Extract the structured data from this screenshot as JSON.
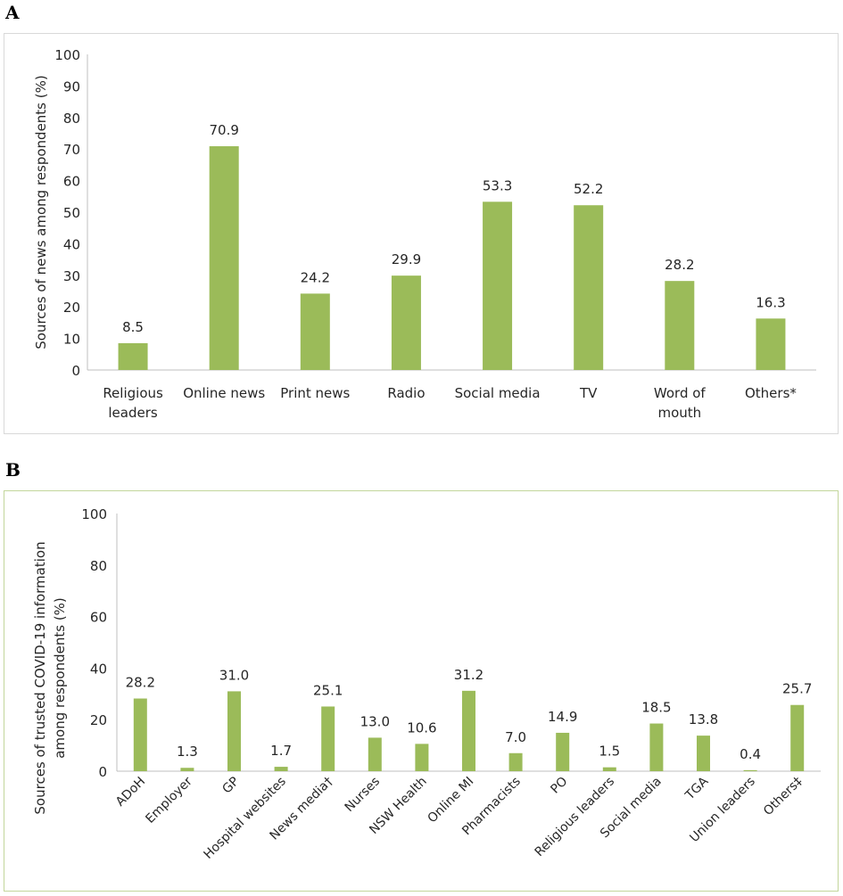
{
  "panels": [
    {
      "letter": "A",
      "chart_data": {
        "type": "bar",
        "title": "",
        "xlabel": "",
        "ylabel": "Sources of news among respondents (%)",
        "ylim": [
          0,
          100
        ],
        "yticks": [
          0,
          10,
          20,
          30,
          40,
          50,
          60,
          70,
          80,
          90,
          100
        ],
        "categories": [
          "Religious leaders",
          "Online news",
          "Print news",
          "Radio",
          "Social media",
          "TV",
          "Word of mouth",
          "Others*"
        ],
        "category_lines": [
          [
            "Religious",
            "leaders"
          ],
          [
            "Online news"
          ],
          [
            "Print news"
          ],
          [
            "Radio"
          ],
          [
            "Social media"
          ],
          [
            "TV"
          ],
          [
            "Word of",
            "mouth"
          ],
          [
            "Others*"
          ]
        ],
        "values": [
          8.5,
          70.9,
          24.2,
          29.9,
          53.3,
          52.2,
          28.2,
          16.3
        ],
        "labels": [
          "8.5",
          "70.9",
          "24.2",
          "29.9",
          "53.3",
          "52.2",
          "28.2",
          "16.3"
        ],
        "color": "#9bbb59"
      }
    },
    {
      "letter": "B",
      "chart_data": {
        "type": "bar",
        "title": "",
        "xlabel": "",
        "ylabel_lines": [
          "Sources of trusted COVID-19 information",
          "among respondents (%)"
        ],
        "ylim": [
          0,
          100
        ],
        "yticks": [
          0,
          20,
          40,
          60,
          80,
          100
        ],
        "categories": [
          "ADoH",
          "Employer",
          "GP",
          "Hospital websites",
          "News media†",
          "Nurses",
          "NSW Health",
          "Online MI",
          "Pharmacists",
          "PO",
          "Religious leaders",
          "Social media",
          "TGA",
          "Union leaders",
          "Others‡"
        ],
        "values": [
          28.2,
          1.3,
          31.0,
          1.7,
          25.1,
          13.0,
          10.6,
          31.2,
          7.0,
          14.9,
          1.5,
          18.5,
          13.8,
          0.4,
          25.7
        ],
        "labels": [
          "28.2",
          "1.3",
          "31.0",
          "1.7",
          "25.1",
          "13.0",
          "10.6",
          "31.2",
          "7.0",
          "14.9",
          "1.5",
          "18.5",
          "13.8",
          "0.4",
          "25.7"
        ],
        "color": "#9bbb59"
      }
    }
  ]
}
